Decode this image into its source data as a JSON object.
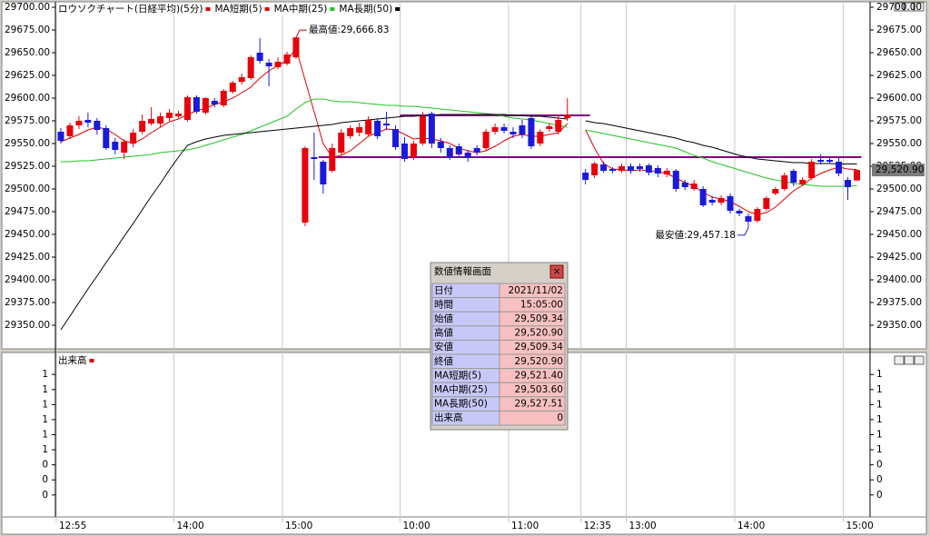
{
  "chart_data": [
    {
      "type": "candlestick",
      "name": "ロウソクチャート(日経平均)(5分)",
      "color": "#e00000",
      "up_color": "#e8000b",
      "down_color": "#1a1adb",
      "categories": [
        "12:55",
        null,
        null,
        null,
        null,
        null,
        null,
        null,
        null,
        null,
        null,
        null,
        null,
        "14:00",
        null,
        null,
        null,
        null,
        null,
        null,
        null,
        null,
        null,
        null,
        null,
        "15:00",
        null,
        null,
        null,
        null,
        null,
        null,
        null,
        null,
        null,
        null,
        null,
        null,
        "10:00",
        null,
        null,
        null,
        null,
        null,
        null,
        null,
        null,
        null,
        null,
        null,
        "11:00",
        null,
        null,
        null,
        null,
        null,
        null,
        null,
        "12:35",
        null,
        null,
        null,
        null,
        "13:00",
        null,
        null,
        null,
        null,
        null,
        null,
        null,
        null,
        null,
        null,
        null,
        "14:00",
        null,
        null,
        null,
        null,
        null,
        null,
        null,
        null,
        null,
        null,
        null,
        "15:00",
        null
      ],
      "open": [
        29563,
        29558,
        29570,
        29576,
        29575,
        29567,
        29552,
        29540,
        29550,
        29563,
        29572,
        29572,
        29578,
        29580,
        29576,
        29601,
        29584,
        29597,
        29592,
        29607,
        29618,
        29622,
        29650,
        29639,
        29634,
        29638,
        29645,
        29463,
        29535,
        29530,
        29520,
        29540,
        29558,
        29562,
        29560,
        29575,
        29572,
        29566,
        29550,
        29535,
        29550,
        29583,
        29552,
        29545,
        29547,
        29540,
        29545,
        29545,
        29563,
        29568,
        29563,
        29570,
        29578,
        29550,
        29566,
        29563,
        29578,
        null,
        29518,
        29515,
        29527,
        29522,
        29520,
        29525,
        29525,
        29526,
        29523,
        29516,
        29520,
        29507,
        29500,
        29500,
        29488,
        29485,
        29492,
        29476,
        29470,
        29465,
        29478,
        29495,
        29500,
        29520,
        29505,
        29512,
        29532,
        29532,
        29530,
        29510,
        29509.34
      ],
      "high": [
        29567,
        29573,
        29580,
        29584,
        29578,
        29570,
        29556,
        29555,
        29566,
        29582,
        29590,
        29584,
        29588,
        29586,
        29603,
        29603,
        29601,
        29600,
        29610,
        29619,
        29627,
        29647,
        29666,
        29643,
        29645,
        29651,
        29666.83,
        29547,
        29562,
        29532,
        29550,
        29566,
        29570,
        29573,
        29580,
        29578,
        29585,
        29570,
        29557,
        29553,
        29585,
        29585,
        29556,
        29548,
        29550,
        29543,
        29548,
        29566,
        29572,
        29572,
        29568,
        29576,
        29580,
        29566,
        29572,
        29582,
        29600,
        null,
        29522,
        29530,
        29530,
        29524,
        29528,
        29528,
        29528,
        29528,
        29526,
        29523,
        29522,
        29510,
        29510,
        29503,
        29492,
        29493,
        29495,
        29478,
        29473,
        29480,
        29492,
        29502,
        29518,
        29522,
        29513,
        29533,
        29538,
        29535,
        29535,
        29513,
        29520.9
      ],
      "low": [
        29550,
        29555,
        29566,
        29568,
        29560,
        29543,
        29538,
        29533,
        29546,
        29560,
        29570,
        29568,
        29575,
        29578,
        29574,
        29583,
        29582,
        29590,
        29590,
        29605,
        29615,
        29620,
        29638,
        29613,
        29632,
        29636,
        29643,
        29459,
        29510,
        29495,
        29518,
        29538,
        29555,
        29558,
        29558,
        29555,
        29565,
        29543,
        29530,
        29532,
        29548,
        29545,
        29540,
        29532,
        29535,
        29530,
        29537,
        29542,
        29560,
        29561,
        29556,
        29556,
        29544,
        29547,
        29563,
        29560,
        29575,
        null,
        29505,
        29512,
        29518,
        29517,
        29518,
        29517,
        29519,
        29515,
        29513,
        29513,
        29497,
        29499,
        29498,
        29480,
        29482,
        29482,
        29473,
        29470,
        29457.18,
        29463,
        29476,
        29493,
        29498,
        29503,
        29503,
        29510,
        29527,
        29528,
        29514,
        29488,
        29509.34
      ],
      "close": [
        29553,
        29570,
        29575,
        29573,
        29565,
        29545,
        29543,
        29552,
        29562,
        29575,
        29577,
        29580,
        29584,
        29583,
        29601,
        29585,
        29600,
        29593,
        29608,
        29617,
        29623,
        29645,
        29641,
        29635,
        29640,
        29648,
        29666.83,
        29545,
        29533,
        29505,
        29545,
        29562,
        29567,
        29568,
        29576,
        29558,
        29570,
        29546,
        29533,
        29550,
        29580,
        29550,
        29545,
        29535,
        29538,
        29535,
        29540,
        29563,
        29568,
        29564,
        29560,
        29560,
        29547,
        29563,
        29569,
        29576,
        29582,
        null,
        29510,
        29528,
        29520,
        29520,
        29525,
        29520,
        29522,
        29518,
        29517,
        29520,
        29500,
        29502,
        29506,
        29482,
        29485,
        29490,
        29476,
        29473,
        29464,
        29478,
        29490,
        29500,
        29515,
        29507,
        29510,
        29530,
        29530,
        29530,
        29517,
        29502,
        29520.9
      ],
      "series": [
        {
          "name": "MA短期(5)",
          "color": "#e00000",
          "values": [
            29552,
            29556,
            29560,
            29565,
            29568,
            29566,
            29560,
            29553,
            29550,
            29555,
            29562,
            29568,
            29574,
            29577,
            29582,
            29586,
            29589,
            29593,
            29596,
            29600,
            29606,
            29612,
            29622,
            29630,
            29636,
            29641,
            29655,
            29620,
            29585,
            29550,
            29535,
            29537,
            29542,
            29550,
            29558,
            29562,
            29566,
            29565,
            29560,
            29555,
            29556,
            29555,
            29553,
            29550,
            29545,
            29542,
            29540,
            29542,
            29547,
            29553,
            29558,
            29560,
            29558,
            29558,
            29560,
            29562,
            29572,
            null,
            29565,
            29545,
            29528,
            29522,
            29521,
            29520,
            29521,
            29520,
            29519,
            29517,
            29512,
            29507,
            29503,
            29496,
            29491,
            29489,
            29486,
            29481,
            29475,
            29472,
            29474,
            29480,
            29489,
            29498,
            29504,
            29512,
            29517,
            29521,
            29524,
            29522,
            29521.4
          ]
        },
        {
          "name": "MA中期(25)",
          "color": "#22c422",
          "values": [
            29530,
            29530,
            29531,
            29531,
            29532,
            29533,
            29534,
            29535,
            29536,
            29537,
            29538,
            29540,
            29541,
            29542,
            29543,
            29545,
            29548,
            29551,
            29554,
            29557,
            29560,
            29564,
            29568,
            29572,
            29576,
            29580,
            29588,
            29595,
            29599,
            29599,
            29597,
            29596,
            29596,
            29595,
            29594,
            29593,
            29592,
            29592,
            29591,
            29591,
            29590,
            29589,
            29588,
            29587,
            29586,
            29585,
            29584,
            29583,
            29582,
            29580,
            29578,
            29577,
            29576,
            29574,
            29572,
            29570,
            29568,
            null,
            29565,
            29563,
            29561,
            29559,
            29557,
            29555,
            29553,
            29551,
            29549,
            29547,
            29545,
            29541,
            29537,
            29534,
            29530,
            29527,
            29524,
            29521,
            29518,
            29515,
            29512,
            29510,
            29508,
            29506,
            29505,
            29504,
            29503,
            29503,
            29503,
            29503,
            29503.6
          ]
        },
        {
          "name": "MA長期(50)",
          "color": "#000000",
          "values": [
            29345,
            29360,
            29375,
            29390,
            29404,
            29419,
            29433,
            29448,
            29462,
            29477,
            29492,
            29506,
            29521,
            29535,
            29548,
            29552,
            29555,
            29557,
            29559,
            29560,
            29561,
            29562,
            29563,
            29564,
            29565,
            29566,
            29567,
            29568,
            29569,
            29570,
            29571,
            29573,
            29574,
            29575,
            29576,
            29577,
            29578,
            29579,
            29580,
            29580,
            29581,
            29581,
            29582,
            29582,
            29582,
            29582,
            29582,
            29582,
            29582,
            29582,
            29581,
            29581,
            29580,
            29580,
            29579,
            29578,
            29577,
            null,
            29575,
            29573,
            29572,
            29570,
            29568,
            29566,
            29564,
            29562,
            29560,
            29558,
            29556,
            29553,
            29551,
            29548,
            29546,
            29543,
            29540,
            29537,
            29535,
            29533,
            29532,
            29531,
            29530,
            29529,
            29529,
            29528,
            29528,
            29528,
            29527.5,
            29527.5,
            29527.51
          ]
        }
      ],
      "levels": [
        {
          "value": 29581,
          "from": 38,
          "to": 58,
          "color": "#800080"
        },
        {
          "value": 29535,
          "from": 29,
          "to": 88,
          "color": "#800080"
        }
      ],
      "high_label": "最高値:29,666.83",
      "low_label": "最安値:29,457.18",
      "last_price": "29,520.90",
      "ylim": [
        29324,
        29704
      ],
      "yticks": [
        {
          "value": 29700,
          "label": "29700.00"
        },
        {
          "value": 29675,
          "label": "29675.00"
        },
        {
          "value": 29650,
          "label": "29650.00"
        },
        {
          "value": 29625,
          "label": "29625.00"
        },
        {
          "value": 29600,
          "label": "29600.00"
        },
        {
          "value": 29575,
          "label": "29575.00"
        },
        {
          "value": 29550,
          "label": "29550.00"
        },
        {
          "value": 29525,
          "label": "29525.00"
        },
        {
          "value": 29500,
          "label": "29500.00"
        },
        {
          "value": 29475,
          "label": "29475.00"
        },
        {
          "value": 29450,
          "label": "29450.00"
        },
        {
          "value": 29425,
          "label": "29425.00"
        },
        {
          "value": 29400,
          "label": "29400.00"
        },
        {
          "value": 29375,
          "label": "29375.00"
        },
        {
          "value": 29350,
          "label": "29350.00"
        }
      ]
    },
    {
      "type": "volume",
      "name": "出来高",
      "color": "#e00000",
      "ylim": [
        0.06,
        1.14
      ],
      "yticks": [
        {
          "value": 1.0,
          "label": "1"
        },
        {
          "value": 0.9,
          "label": "1"
        },
        {
          "value": 0.8,
          "label": "1"
        },
        {
          "value": 0.7,
          "label": "1"
        },
        {
          "value": 0.6,
          "label": "1"
        },
        {
          "value": 0.5,
          "label": "1"
        },
        {
          "value": 0.4,
          "label": "0"
        },
        {
          "value": 0.3,
          "label": "0"
        },
        {
          "value": 0.2,
          "label": "0"
        }
      ]
    }
  ],
  "info_window": {
    "title": "数値情報画面",
    "close": "×",
    "rows": [
      [
        "日付",
        "2021/11/02"
      ],
      [
        "時間",
        "15:05:00"
      ],
      [
        "始値",
        "29,509.34"
      ],
      [
        "高値",
        "29,520.90"
      ],
      [
        "安値",
        "29,509.34"
      ],
      [
        "終値",
        "29,520.90"
      ],
      [
        "MA短期(5)",
        "29,521.40"
      ],
      [
        "MA中期(25)",
        "29,503.60"
      ],
      [
        "MA長期(50)",
        "29,527.51"
      ],
      [
        "出来高",
        "0"
      ]
    ]
  }
}
